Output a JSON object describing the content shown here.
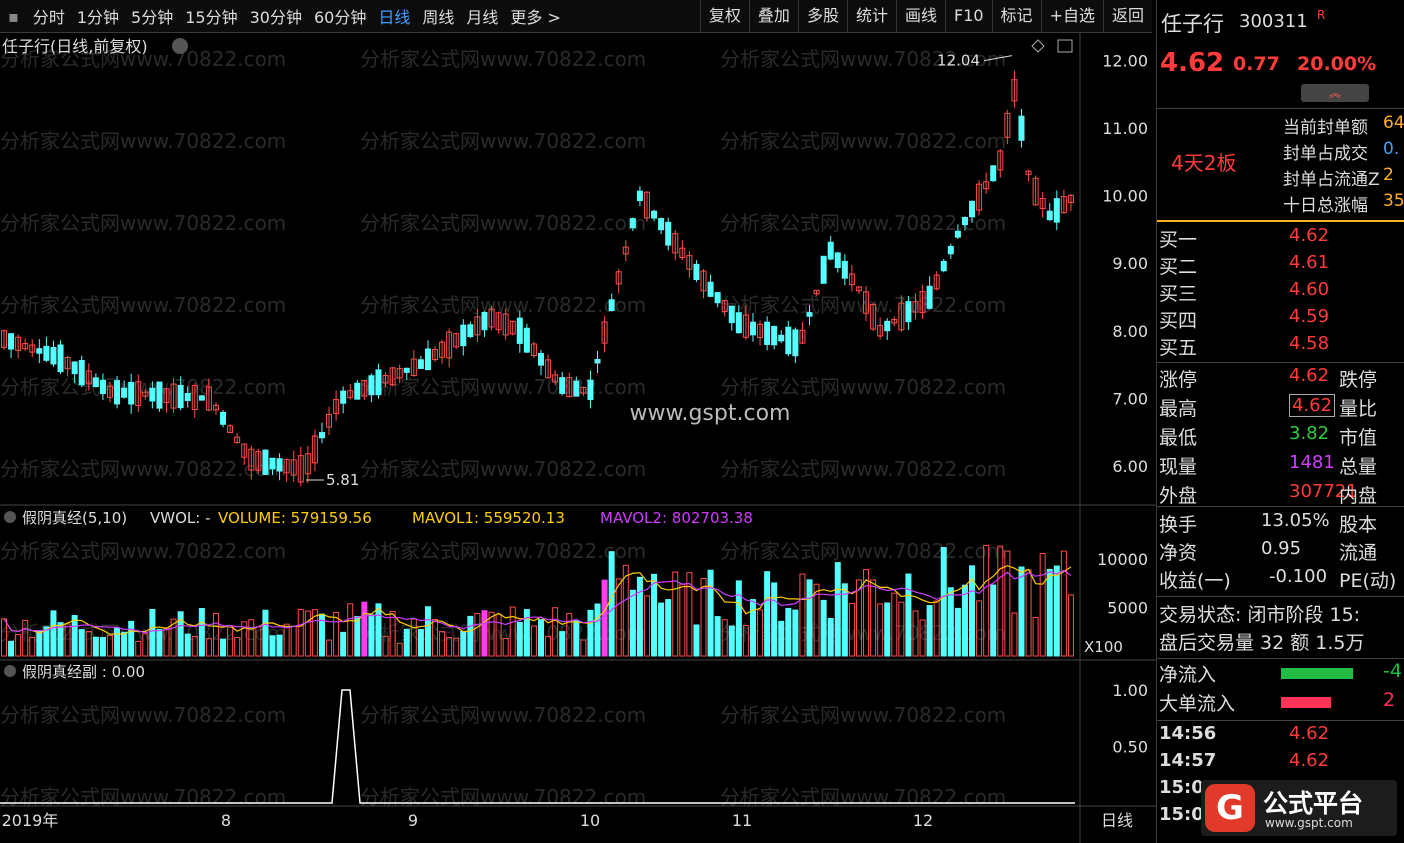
{
  "toolbar": {
    "periods": [
      "分时",
      "1分钟",
      "5分钟",
      "15分钟",
      "30分钟",
      "60分钟",
      "日线",
      "周线",
      "月线",
      "更多 >"
    ],
    "active_period": "日线",
    "actions": [
      "复权",
      "叠加",
      "多股",
      "统计",
      "画线",
      "F10",
      "标记",
      "+自选",
      "返回"
    ]
  },
  "chart": {
    "title": "任子行(日线,前复权)",
    "high_label": "12.04",
    "low_label": "5.81",
    "price_ticks": [
      "12.00",
      "11.00",
      "10.00",
      "9.00",
      "8.00",
      "7.00",
      "6.00"
    ],
    "watermark": "分析家公式网www.70822.com",
    "site_mark": "www.gspt.com"
  },
  "volume_panel": {
    "indicator": "假阴真经(5,10)",
    "vwol": "VWOL: -",
    "volume_label": "VOLUME: 579159.56",
    "mavol1_label": "MAVOL1: 559520.13",
    "mavol2_label": "MAVOL2: 802703.38",
    "ticks": [
      "10000",
      "5000"
    ],
    "unit": "X100",
    "colors": {
      "volume": "#ffcc00",
      "mavol1": "#ffcc00",
      "mavol2": "#d03bff"
    }
  },
  "sub_panel": {
    "indicator": "假阴真经副 : 0.00",
    "ticks": [
      "1.00",
      "0.50"
    ]
  },
  "x_axis": {
    "labels": [
      "2019年",
      "8",
      "9",
      "10",
      "11",
      "12"
    ],
    "period": "日线"
  },
  "stock": {
    "name": "任子行",
    "code": "300311",
    "badge": "R",
    "price": "4.62",
    "change": "0.77",
    "pct": "20.00%",
    "limit_tag": "4天2板",
    "seal_labels": [
      "当前封单额",
      "封单占成交",
      "封单占流通Z",
      "十日总涨幅"
    ],
    "seal_values": [
      "64",
      "0.",
      "2",
      "35"
    ]
  },
  "order_book": [
    {
      "label": "买一",
      "price": "4.62"
    },
    {
      "label": "买二",
      "price": "4.61"
    },
    {
      "label": "买三",
      "price": "4.60"
    },
    {
      "label": "买四",
      "price": "4.59"
    },
    {
      "label": "买五",
      "price": "4.58"
    }
  ],
  "quote": [
    {
      "label": "涨停",
      "value": "4.62",
      "color": "red",
      "label2": "跌停"
    },
    {
      "label": "最高",
      "value": "4.62",
      "color": "red",
      "label2": "量比"
    },
    {
      "label": "最低",
      "value": "3.82",
      "color": "green",
      "label2": "市值"
    },
    {
      "label": "现量",
      "value": "1481",
      "color": "purple",
      "label2": "总量"
    },
    {
      "label": "外盘",
      "value": "307721",
      "color": "red",
      "label2": "内盘"
    }
  ],
  "stats": [
    {
      "label": "换手",
      "value": "13.05%",
      "label2": "股本"
    },
    {
      "label": "净资",
      "value": "0.95",
      "label2": "流通"
    },
    {
      "label": "收益(一)",
      "value": "-0.100",
      "label2": "PE(动)"
    }
  ],
  "trade_state": "交易状态: 闭市阶段 15:",
  "after_hours": "盘后交易量 32 额 1.5万",
  "flows": [
    {
      "label": "净流入",
      "value": "-4",
      "color": "#22bb44"
    },
    {
      "label": "大单流入",
      "value": "2",
      "color": "#ff3355"
    }
  ],
  "ticks_list": [
    {
      "time": "14:56",
      "price": "4.62"
    },
    {
      "time": "14:57",
      "price": "4.62"
    },
    {
      "time": "15:0",
      "price": ""
    },
    {
      "time": "15:0",
      "price": ""
    }
  ],
  "logo": {
    "text": "公式平台",
    "url_text": "www.gspt.com",
    "glyph": "G"
  }
}
